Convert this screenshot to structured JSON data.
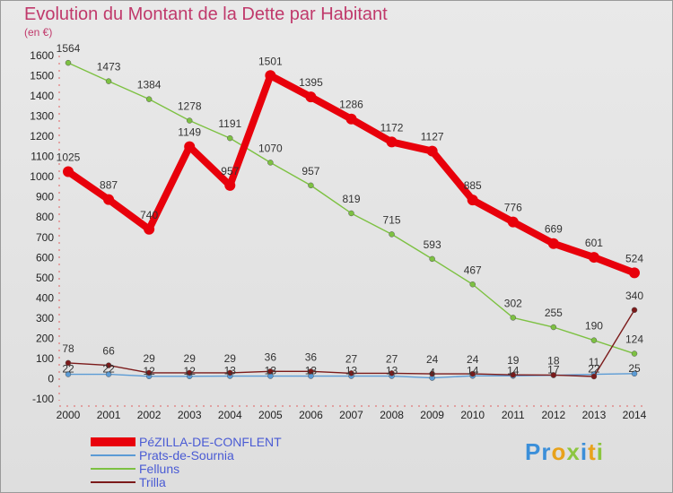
{
  "header": {
    "title": "Evolution du Montant de la Dette par Habitant",
    "unit": "(en €)"
  },
  "logo": {
    "letters": [
      "P",
      "r",
      "o",
      "x",
      "i",
      "t",
      "i"
    ],
    "colors": [
      "#3b8fd9",
      "#3b8fd9",
      "#e8a21b",
      "#8cc63f",
      "#3b8fd9",
      "#e8a21b",
      "#8cc63f"
    ]
  },
  "chart_data": {
    "type": "line",
    "title": "Evolution du Montant de la Dette par Habitant",
    "ylabel": "(en €)",
    "xlabel": "",
    "x": [
      "2000",
      "2001",
      "2002",
      "2003",
      "2004",
      "2005",
      "2006",
      "2007",
      "2008",
      "2009",
      "2010",
      "2011",
      "2012",
      "2013",
      "2014"
    ],
    "ylim": [
      -100,
      1600
    ],
    "yticks": [
      -100,
      0,
      100,
      200,
      300,
      400,
      500,
      600,
      700,
      800,
      900,
      1000,
      1100,
      1200,
      1300,
      1400,
      1500,
      1600
    ],
    "grid": false,
    "legend_position": "bottom-left",
    "series": [
      {
        "name": "PéZILLA-DE-CONFLENT",
        "color": "#e8000b",
        "values": [
          1025,
          887,
          740,
          1149,
          957,
          1501,
          1395,
          1286,
          1172,
          1127,
          885,
          776,
          669,
          601,
          524
        ],
        "labels": [
          "1025",
          "887",
          "740",
          "1149",
          "957",
          "1501",
          "1395",
          "1286",
          "1172",
          "1127",
          "885",
          "776",
          "669",
          "601",
          "524"
        ]
      },
      {
        "name": "Prats-de-Sournia",
        "color": "#5b9bd5",
        "values": [
          22,
          22,
          12,
          12,
          13,
          13,
          13,
          13,
          13,
          4,
          14,
          14,
          17,
          22,
          25
        ],
        "labels": [
          "22",
          "22",
          "12",
          "12",
          "13",
          "13",
          "13",
          "13",
          "13",
          "4",
          "14",
          "14",
          "17",
          "22",
          "25"
        ]
      },
      {
        "name": "Felluns",
        "color": "#7dc142",
        "values": [
          1564,
          1473,
          1384,
          1278,
          1191,
          1070,
          957,
          819,
          715,
          593,
          467,
          302,
          255,
          190,
          124
        ],
        "labels": [
          "1564",
          "1473",
          "1384",
          "1278",
          "1191",
          "1070",
          "957",
          "819",
          "715",
          "593",
          "467",
          "302",
          "255",
          "190",
          "124"
        ]
      },
      {
        "name": "Trilla",
        "color": "#7b1a1a",
        "values": [
          78,
          66,
          29,
          29,
          29,
          36,
          36,
          27,
          27,
          24,
          24,
          19,
          18,
          11,
          340
        ],
        "labels": [
          "78",
          "66",
          "29",
          "29",
          "29",
          "36",
          "36",
          "27",
          "27",
          "24",
          "24",
          "19",
          "18",
          "11",
          "340"
        ]
      }
    ]
  }
}
